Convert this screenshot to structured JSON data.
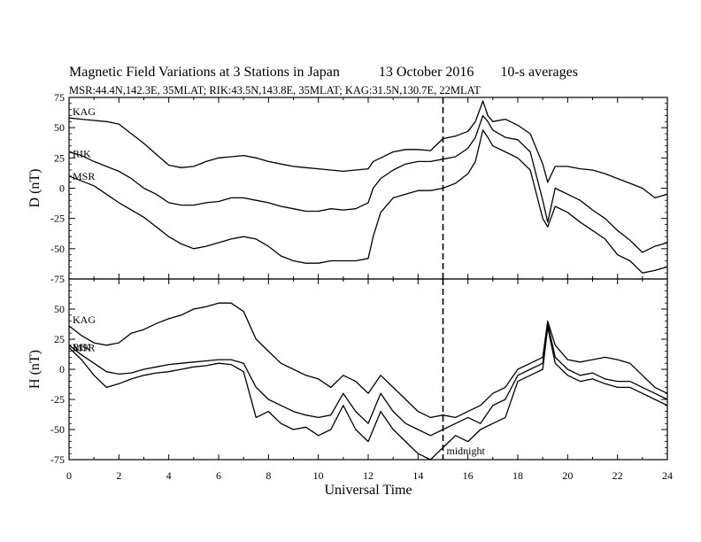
{
  "header": {
    "title": "Magnetic Field Variations at 3 Stations in Japan",
    "date": "13 October 2016",
    "averaging": "10-s averages",
    "stations": "MSR:44.4N,142.3E, 35MLAT;  RIK:43.5N,143.8E, 35MLAT;  KAG:31.5N,130.7E, 22MLAT"
  },
  "chart_data": [
    {
      "type": "line",
      "panel": "top",
      "ylabel": "D (nT)",
      "xlabel": "Universal Time",
      "xlim": [
        0,
        24
      ],
      "ylim": [
        -75,
        75
      ],
      "xticks": [
        0,
        2,
        4,
        6,
        8,
        10,
        12,
        14,
        16,
        18,
        20,
        22,
        24
      ],
      "yticks": [
        75,
        50,
        25,
        0,
        -25,
        -50,
        -75
      ],
      "grid": false,
      "vline": {
        "x": 15,
        "style": "dashed"
      },
      "series": [
        {
          "name": "KAG",
          "x": [
            0,
            0.5,
            1,
            1.5,
            2,
            2.5,
            3,
            3.5,
            4,
            4.5,
            5,
            5.5,
            6,
            6.5,
            7,
            7.5,
            8,
            8.5,
            9,
            9.5,
            10,
            10.5,
            11,
            11.5,
            12,
            12.2,
            12.5,
            13,
            13.5,
            14,
            14.5,
            15,
            15.5,
            16,
            16.3,
            16.6,
            16.8,
            17,
            17.5,
            18,
            18.5,
            19,
            19.2,
            19.5,
            20,
            20.5,
            21,
            21.5,
            22,
            22.5,
            23,
            23.5,
            24
          ],
          "y": [
            58,
            57,
            56,
            55,
            53,
            45,
            37,
            28,
            19,
            17,
            18,
            22,
            25,
            26,
            27,
            25,
            22,
            20,
            18,
            17,
            16,
            15,
            14,
            15,
            16,
            22,
            25,
            30,
            32,
            32,
            31,
            41,
            43,
            47,
            55,
            72,
            60,
            55,
            57,
            52,
            45,
            20,
            5,
            18,
            18,
            16,
            15,
            12,
            8,
            4,
            0,
            -8,
            -5
          ]
        },
        {
          "name": "RIK",
          "x": [
            0,
            0.5,
            1,
            1.5,
            2,
            2.5,
            3,
            3.5,
            4,
            4.5,
            5,
            5.5,
            6,
            6.5,
            7,
            7.5,
            8,
            8.5,
            9,
            9.5,
            10,
            10.5,
            11,
            11.5,
            12,
            12.2,
            12.5,
            13,
            13.5,
            14,
            14.5,
            15,
            15.5,
            16,
            16.3,
            16.6,
            16.8,
            17,
            17.5,
            18,
            18.5,
            19,
            19.2,
            19.5,
            20,
            20.5,
            21,
            21.5,
            22,
            22.5,
            23,
            23.5,
            24
          ],
          "y": [
            30,
            27,
            22,
            18,
            14,
            8,
            0,
            -5,
            -12,
            -14,
            -14,
            -12,
            -11,
            -8,
            -8,
            -10,
            -12,
            -15,
            -17,
            -19,
            -19,
            -17,
            -18,
            -17,
            -12,
            0,
            8,
            15,
            20,
            22,
            22,
            24,
            26,
            33,
            42,
            60,
            55,
            48,
            42,
            40,
            30,
            -10,
            -28,
            0,
            -5,
            -10,
            -18,
            -25,
            -35,
            -43,
            -53,
            -48,
            -45
          ]
        },
        {
          "name": "MSR",
          "x": [
            0,
            0.5,
            1,
            1.5,
            2,
            2.5,
            3,
            3.5,
            4,
            4.5,
            5,
            5.5,
            6,
            6.5,
            7,
            7.5,
            8,
            8.5,
            9,
            9.5,
            10,
            10.5,
            11,
            11.5,
            12,
            12.2,
            12.5,
            13,
            13.5,
            14,
            14.5,
            15,
            15.5,
            16,
            16.3,
            16.6,
            16.8,
            17,
            17.5,
            18,
            18.5,
            19,
            19.2,
            19.5,
            20,
            20.5,
            21,
            21.5,
            22,
            22.5,
            23,
            23.5,
            24
          ],
          "y": [
            10,
            6,
            2,
            -5,
            -12,
            -18,
            -24,
            -32,
            -40,
            -46,
            -50,
            -48,
            -45,
            -42,
            -40,
            -42,
            -48,
            -56,
            -60,
            -62,
            -62,
            -60,
            -60,
            -60,
            -58,
            -40,
            -20,
            -8,
            -5,
            -2,
            -2,
            0,
            4,
            12,
            22,
            48,
            42,
            35,
            30,
            25,
            15,
            -25,
            -32,
            -15,
            -20,
            -28,
            -35,
            -42,
            -55,
            -60,
            -70,
            -68,
            -65
          ]
        }
      ]
    },
    {
      "type": "line",
      "panel": "bottom",
      "ylabel": "H (nT)",
      "xlabel": "Universal Time",
      "xlim": [
        0,
        24
      ],
      "ylim": [
        -75,
        75
      ],
      "xticks": [
        0,
        2,
        4,
        6,
        8,
        10,
        12,
        14,
        16,
        18,
        20,
        22,
        24
      ],
      "yticks": [
        50,
        25,
        0,
        -25,
        -50,
        -75
      ],
      "grid": false,
      "vline": {
        "x": 15,
        "style": "dashed"
      },
      "annotation": "midnight",
      "series": [
        {
          "name": "KAG",
          "x": [
            0,
            0.5,
            1,
            1.5,
            2,
            2.5,
            3,
            3.5,
            4,
            4.5,
            5,
            5.5,
            6,
            6.5,
            7,
            7.5,
            8,
            8.5,
            9,
            9.5,
            10,
            10.5,
            11,
            11.5,
            12,
            12.5,
            13,
            13.5,
            14,
            14.5,
            15,
            15.5,
            16,
            16.5,
            17,
            17.5,
            18,
            18.5,
            19,
            19.2,
            19.5,
            20,
            20.5,
            21,
            21.5,
            22,
            22.5,
            23,
            23.5,
            24
          ],
          "y": [
            36,
            28,
            22,
            20,
            22,
            30,
            33,
            38,
            42,
            45,
            50,
            52,
            55,
            55,
            48,
            25,
            15,
            5,
            0,
            -5,
            -8,
            -15,
            -5,
            -10,
            -20,
            -5,
            -15,
            -25,
            -35,
            -40,
            -38,
            -40,
            -35,
            -30,
            -20,
            -15,
            0,
            5,
            10,
            40,
            20,
            8,
            6,
            8,
            10,
            8,
            5,
            -5,
            -15,
            -20
          ]
        },
        {
          "name": "RIK",
          "x": [
            0,
            0.5,
            1,
            1.5,
            2,
            2.5,
            3,
            3.5,
            4,
            4.5,
            5,
            5.5,
            6,
            6.5,
            7,
            7.5,
            8,
            8.5,
            9,
            9.5,
            10,
            10.5,
            11,
            11.5,
            12,
            12.5,
            13,
            13.5,
            14,
            14.5,
            15,
            15.5,
            16,
            16.5,
            17,
            17.5,
            18,
            18.5,
            19,
            19.2,
            19.5,
            20,
            20.5,
            21,
            21.5,
            22,
            22.5,
            23,
            23.5,
            24
          ],
          "y": [
            20,
            12,
            5,
            -2,
            -4,
            -3,
            0,
            2,
            4,
            5,
            6,
            7,
            8,
            8,
            5,
            -15,
            -25,
            -30,
            -35,
            -38,
            -40,
            -38,
            -20,
            -35,
            -45,
            -20,
            -35,
            -45,
            -50,
            -55,
            -50,
            -45,
            -40,
            -45,
            -30,
            -25,
            -5,
            0,
            5,
            38,
            10,
            0,
            -5,
            -3,
            -8,
            -10,
            -10,
            -15,
            -20,
            -25
          ]
        },
        {
          "name": "MSR",
          "x": [
            0,
            0.5,
            1,
            1.5,
            2,
            2.5,
            3,
            3.5,
            4,
            4.5,
            5,
            5.5,
            6,
            6.5,
            7,
            7.5,
            8,
            8.5,
            9,
            9.5,
            10,
            10.5,
            11,
            11.5,
            12,
            12.5,
            13,
            13.5,
            14,
            14.5,
            15,
            15.5,
            16,
            16.5,
            17,
            17.5,
            18,
            18.5,
            19,
            19.2,
            19.5,
            20,
            20.5,
            21,
            21.5,
            22,
            22.5,
            23,
            23.5,
            24
          ],
          "y": [
            18,
            8,
            -5,
            -15,
            -12,
            -8,
            -5,
            -3,
            -2,
            0,
            2,
            3,
            5,
            4,
            -2,
            -40,
            -35,
            -45,
            -50,
            -48,
            -55,
            -50,
            -30,
            -50,
            -60,
            -35,
            -50,
            -60,
            -70,
            -75,
            -65,
            -55,
            -60,
            -50,
            -45,
            -40,
            -10,
            -5,
            0,
            35,
            5,
            -5,
            -10,
            -8,
            -12,
            -15,
            -15,
            -20,
            -25,
            -30
          ]
        }
      ]
    }
  ]
}
